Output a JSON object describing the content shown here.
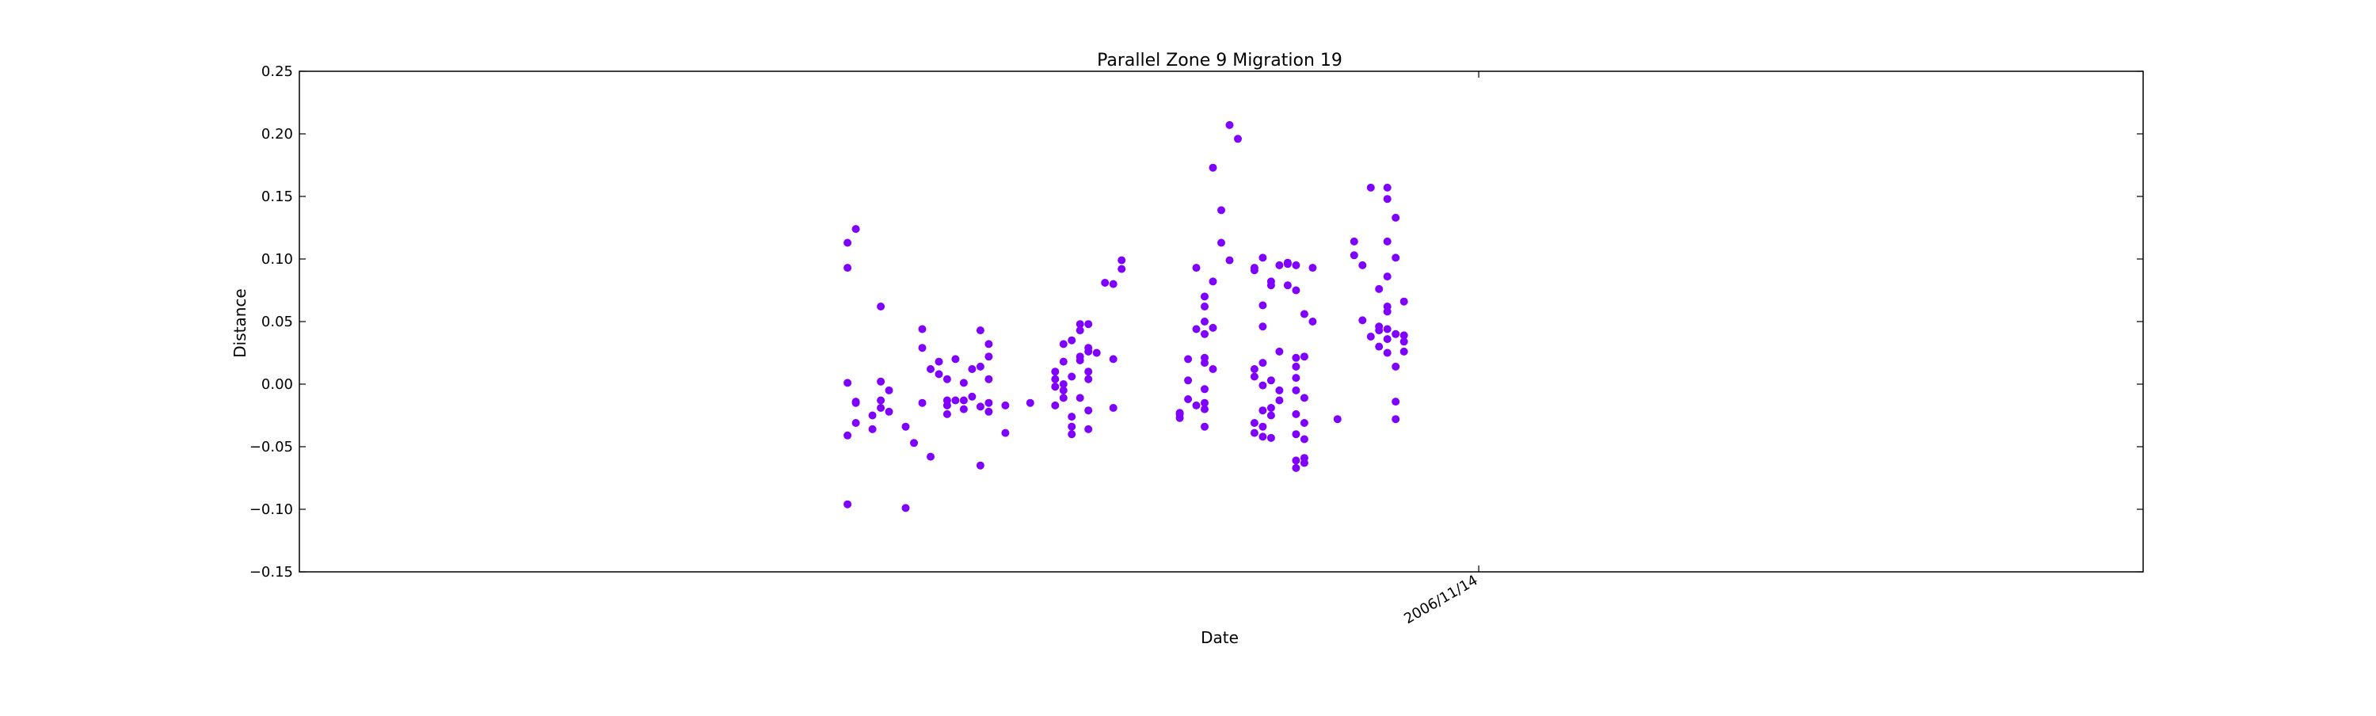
{
  "chart_data": {
    "type": "scatter",
    "title": "Parallel Zone 9 Migration 19",
    "xlabel": "Date",
    "ylabel": "Distance",
    "ylim": [
      -0.15,
      0.25
    ],
    "yticks": [
      -0.15,
      -0.1,
      -0.05,
      0.0,
      0.05,
      0.1,
      0.15,
      0.2,
      0.25
    ],
    "ytick_labels": [
      "−0.15",
      "−0.10",
      "−0.05",
      "0.00",
      "0.05",
      "0.10",
      "0.15",
      "0.20",
      "0.25"
    ],
    "x_axis": {
      "kind": "date",
      "range": [
        "2006/06/25",
        "2007/02/02"
      ],
      "ticks": [
        "2006/11/14"
      ],
      "tick_labels": [
        "2006/11/14"
      ],
      "tick_label_rotation_deg": 30
    },
    "grid": false,
    "marker_color": "#7F00FF",
    "series": [
      {
        "color": "#7F00FF",
        "points": [
          {
            "x": "2006/08/30",
            "y": 0.113
          },
          {
            "x": "2006/08/30",
            "y": 0.093
          },
          {
            "x": "2006/08/30",
            "y": 0.001
          },
          {
            "x": "2006/08/30",
            "y": -0.041
          },
          {
            "x": "2006/08/30",
            "y": -0.096
          },
          {
            "x": "2006/08/31",
            "y": 0.124
          },
          {
            "x": "2006/08/31",
            "y": -0.014
          },
          {
            "x": "2006/08/31",
            "y": -0.015
          },
          {
            "x": "2006/08/31",
            "y": -0.031
          },
          {
            "x": "2006/09/02",
            "y": -0.025
          },
          {
            "x": "2006/09/02",
            "y": -0.036
          },
          {
            "x": "2006/09/03",
            "y": 0.062
          },
          {
            "x": "2006/09/03",
            "y": 0.002
          },
          {
            "x": "2006/09/03",
            "y": -0.013
          },
          {
            "x": "2006/09/03",
            "y": -0.019
          },
          {
            "x": "2006/09/04",
            "y": -0.005
          },
          {
            "x": "2006/09/04",
            "y": -0.022
          },
          {
            "x": "2006/09/06",
            "y": -0.099
          },
          {
            "x": "2006/09/06",
            "y": -0.034
          },
          {
            "x": "2006/09/07",
            "y": -0.047
          },
          {
            "x": "2006/09/08",
            "y": 0.044
          },
          {
            "x": "2006/09/08",
            "y": 0.029
          },
          {
            "x": "2006/09/08",
            "y": -0.015
          },
          {
            "x": "2006/09/09",
            "y": 0.012
          },
          {
            "x": "2006/09/09",
            "y": -0.058
          },
          {
            "x": "2006/09/10",
            "y": 0.018
          },
          {
            "x": "2006/09/10",
            "y": 0.008
          },
          {
            "x": "2006/09/11",
            "y": 0.004
          },
          {
            "x": "2006/09/11",
            "y": -0.013
          },
          {
            "x": "2006/09/11",
            "y": -0.017
          },
          {
            "x": "2006/09/11",
            "y": -0.024
          },
          {
            "x": "2006/09/12",
            "y": 0.02
          },
          {
            "x": "2006/09/12",
            "y": -0.013
          },
          {
            "x": "2006/09/13",
            "y": 0.001
          },
          {
            "x": "2006/09/13",
            "y": -0.013
          },
          {
            "x": "2006/09/13",
            "y": -0.02
          },
          {
            "x": "2006/09/14",
            "y": -0.01
          },
          {
            "x": "2006/09/14",
            "y": 0.012
          },
          {
            "x": "2006/09/15",
            "y": 0.043
          },
          {
            "x": "2006/09/15",
            "y": 0.014
          },
          {
            "x": "2006/09/15",
            "y": -0.018
          },
          {
            "x": "2006/09/15",
            "y": -0.065
          },
          {
            "x": "2006/09/16",
            "y": 0.032
          },
          {
            "x": "2006/09/16",
            "y": 0.022
          },
          {
            "x": "2006/09/16",
            "y": 0.004
          },
          {
            "x": "2006/09/16",
            "y": -0.015
          },
          {
            "x": "2006/09/16",
            "y": -0.022
          },
          {
            "x": "2006/09/18",
            "y": -0.017
          },
          {
            "x": "2006/09/18",
            "y": -0.039
          },
          {
            "x": "2006/09/21",
            "y": -0.015
          },
          {
            "x": "2006/09/24",
            "y": 0.004
          },
          {
            "x": "2006/09/24",
            "y": 0.01
          },
          {
            "x": "2006/09/24",
            "y": -0.002
          },
          {
            "x": "2006/09/24",
            "y": -0.017
          },
          {
            "x": "2006/09/25",
            "y": 0.032
          },
          {
            "x": "2006/09/25",
            "y": 0.018
          },
          {
            "x": "2006/09/25",
            "y": 0.0
          },
          {
            "x": "2006/09/25",
            "y": -0.005
          },
          {
            "x": "2006/09/25",
            "y": -0.011
          },
          {
            "x": "2006/09/26",
            "y": 0.035
          },
          {
            "x": "2006/09/26",
            "y": 0.006
          },
          {
            "x": "2006/09/26",
            "y": -0.026
          },
          {
            "x": "2006/09/26",
            "y": -0.034
          },
          {
            "x": "2006/09/26",
            "y": -0.04
          },
          {
            "x": "2006/09/27",
            "y": 0.048
          },
          {
            "x": "2006/09/27",
            "y": 0.043
          },
          {
            "x": "2006/09/27",
            "y": 0.022
          },
          {
            "x": "2006/09/27",
            "y": 0.019
          },
          {
            "x": "2006/09/27",
            "y": -0.011
          },
          {
            "x": "2006/09/28",
            "y": 0.048
          },
          {
            "x": "2006/09/28",
            "y": 0.029
          },
          {
            "x": "2006/09/28",
            "y": 0.026
          },
          {
            "x": "2006/09/28",
            "y": 0.01
          },
          {
            "x": "2006/09/28",
            "y": 0.004
          },
          {
            "x": "2006/09/28",
            "y": -0.021
          },
          {
            "x": "2006/09/28",
            "y": -0.036
          },
          {
            "x": "2006/09/29",
            "y": 0.025
          },
          {
            "x": "2006/09/30",
            "y": 0.081
          },
          {
            "x": "2006/10/01",
            "y": 0.08
          },
          {
            "x": "2006/10/01",
            "y": 0.02
          },
          {
            "x": "2006/10/01",
            "y": -0.019
          },
          {
            "x": "2006/10/02",
            "y": 0.099
          },
          {
            "x": "2006/10/02",
            "y": 0.092
          },
          {
            "x": "2006/10/09",
            "y": -0.023
          },
          {
            "x": "2006/10/09",
            "y": -0.027
          },
          {
            "x": "2006/10/09",
            "y": -0.024
          },
          {
            "x": "2006/10/10",
            "y": 0.003
          },
          {
            "x": "2006/10/10",
            "y": -0.012
          },
          {
            "x": "2006/10/10",
            "y": 0.02
          },
          {
            "x": "2006/10/11",
            "y": -0.017
          },
          {
            "x": "2006/10/11",
            "y": 0.093
          },
          {
            "x": "2006/10/11",
            "y": 0.044
          },
          {
            "x": "2006/10/12",
            "y": 0.017
          },
          {
            "x": "2006/10/12",
            "y": 0.05
          },
          {
            "x": "2006/10/12",
            "y": 0.04
          },
          {
            "x": "2006/10/12",
            "y": 0.021
          },
          {
            "x": "2006/10/12",
            "y": -0.004
          },
          {
            "x": "2006/10/12",
            "y": -0.015
          },
          {
            "x": "2006/10/12",
            "y": -0.02
          },
          {
            "x": "2006/10/12",
            "y": -0.034
          },
          {
            "x": "2006/10/12",
            "y": 0.062
          },
          {
            "x": "2006/10/12",
            "y": 0.07
          },
          {
            "x": "2006/10/13",
            "y": 0.045
          },
          {
            "x": "2006/10/13",
            "y": 0.012
          },
          {
            "x": "2006/10/13",
            "y": 0.082
          },
          {
            "x": "2006/10/13",
            "y": 0.173
          },
          {
            "x": "2006/10/14",
            "y": 0.139
          },
          {
            "x": "2006/10/14",
            "y": 0.113
          },
          {
            "x": "2006/10/15",
            "y": 0.099
          },
          {
            "x": "2006/10/15",
            "y": 0.207
          },
          {
            "x": "2006/10/16",
            "y": 0.196
          },
          {
            "x": "2006/10/18",
            "y": 0.093
          },
          {
            "x": "2006/10/18",
            "y": 0.091
          },
          {
            "x": "2006/10/18",
            "y": 0.012
          },
          {
            "x": "2006/10/18",
            "y": 0.006
          },
          {
            "x": "2006/10/18",
            "y": -0.031
          },
          {
            "x": "2006/10/18",
            "y": -0.039
          },
          {
            "x": "2006/10/19",
            "y": 0.063
          },
          {
            "x": "2006/10/19",
            "y": 0.046
          },
          {
            "x": "2006/10/19",
            "y": 0.017
          },
          {
            "x": "2006/10/19",
            "y": -0.001
          },
          {
            "x": "2006/10/19",
            "y": -0.021
          },
          {
            "x": "2006/10/19",
            "y": -0.034
          },
          {
            "x": "2006/10/19",
            "y": -0.042
          },
          {
            "x": "2006/10/19",
            "y": 0.101
          },
          {
            "x": "2006/10/20",
            "y": 0.082
          },
          {
            "x": "2006/10/20",
            "y": 0.079
          },
          {
            "x": "2006/10/20",
            "y": 0.003
          },
          {
            "x": "2006/10/20",
            "y": -0.019
          },
          {
            "x": "2006/10/20",
            "y": -0.025
          },
          {
            "x": "2006/10/20",
            "y": -0.043
          },
          {
            "x": "2006/10/21",
            "y": 0.026
          },
          {
            "x": "2006/10/21",
            "y": -0.005
          },
          {
            "x": "2006/10/21",
            "y": -0.013
          },
          {
            "x": "2006/10/21",
            "y": 0.095
          },
          {
            "x": "2006/10/22",
            "y": 0.096
          },
          {
            "x": "2006/10/22",
            "y": 0.097
          },
          {
            "x": "2006/10/22",
            "y": 0.079
          },
          {
            "x": "2006/10/23",
            "y": 0.075
          },
          {
            "x": "2006/10/23",
            "y": 0.021
          },
          {
            "x": "2006/10/23",
            "y": 0.014
          },
          {
            "x": "2006/10/23",
            "y": 0.005
          },
          {
            "x": "2006/10/23",
            "y": -0.005
          },
          {
            "x": "2006/10/23",
            "y": -0.024
          },
          {
            "x": "2006/10/23",
            "y": -0.04
          },
          {
            "x": "2006/10/23",
            "y": -0.061
          },
          {
            "x": "2006/10/23",
            "y": -0.067
          },
          {
            "x": "2006/10/23",
            "y": 0.095
          },
          {
            "x": "2006/10/24",
            "y": 0.022
          },
          {
            "x": "2006/10/24",
            "y": -0.011
          },
          {
            "x": "2006/10/24",
            "y": -0.031
          },
          {
            "x": "2006/10/24",
            "y": -0.044
          },
          {
            "x": "2006/10/24",
            "y": -0.059
          },
          {
            "x": "2006/10/24",
            "y": -0.063
          },
          {
            "x": "2006/10/24",
            "y": 0.056
          },
          {
            "x": "2006/10/25",
            "y": 0.05
          },
          {
            "x": "2006/10/25",
            "y": 0.093
          },
          {
            "x": "2006/10/28",
            "y": -0.028
          },
          {
            "x": "2006/10/30",
            "y": 0.114
          },
          {
            "x": "2006/10/30",
            "y": 0.103
          },
          {
            "x": "2006/10/31",
            "y": 0.095
          },
          {
            "x": "2006/10/31",
            "y": 0.051
          },
          {
            "x": "2006/11/01",
            "y": 0.157
          },
          {
            "x": "2006/11/01",
            "y": 0.038
          },
          {
            "x": "2006/11/02",
            "y": 0.046
          },
          {
            "x": "2006/11/02",
            "y": 0.076
          },
          {
            "x": "2006/11/02",
            "y": 0.043
          },
          {
            "x": "2006/11/02",
            "y": 0.03
          },
          {
            "x": "2006/11/03",
            "y": 0.114
          },
          {
            "x": "2006/11/03",
            "y": 0.157
          },
          {
            "x": "2006/11/03",
            "y": 0.148
          },
          {
            "x": "2006/11/03",
            "y": 0.086
          },
          {
            "x": "2006/11/03",
            "y": 0.062
          },
          {
            "x": "2006/11/03",
            "y": 0.058
          },
          {
            "x": "2006/11/03",
            "y": 0.044
          },
          {
            "x": "2006/11/03",
            "y": 0.036
          },
          {
            "x": "2006/11/03",
            "y": 0.025
          },
          {
            "x": "2006/11/04",
            "y": 0.133
          },
          {
            "x": "2006/11/04",
            "y": 0.04
          },
          {
            "x": "2006/11/04",
            "y": 0.014
          },
          {
            "x": "2006/11/04",
            "y": -0.014
          },
          {
            "x": "2006/11/04",
            "y": -0.028
          },
          {
            "x": "2006/11/04",
            "y": 0.101
          },
          {
            "x": "2006/11/05",
            "y": 0.066
          },
          {
            "x": "2006/11/05",
            "y": 0.039
          },
          {
            "x": "2006/11/05",
            "y": 0.034
          },
          {
            "x": "2006/11/05",
            "y": 0.026
          }
        ]
      }
    ]
  }
}
